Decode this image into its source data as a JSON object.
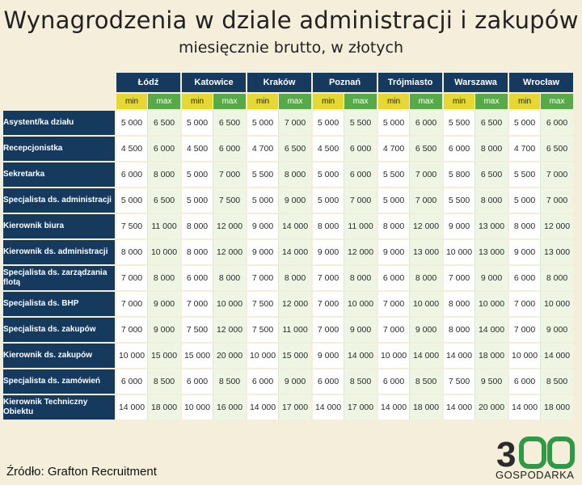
{
  "title": "Wynagrodzenia w dziale administracji i zakupów",
  "subtitle": "miesięcznie brutto, w złotych",
  "min_label": "min",
  "max_label": "max",
  "cities": [
    "Łódź",
    "Katowice",
    "Kraków",
    "Poznań",
    "Trójmiasto",
    "Warszawa",
    "Wrocław"
  ],
  "rows": [
    {
      "role": "Asystent/ka działu",
      "values": [
        "5 000",
        "6 500",
        "5 000",
        "6 500",
        "5 000",
        "7 000",
        "5 000",
        "5 500",
        "5 000",
        "6 000",
        "5 500",
        "6 500",
        "5 000",
        "6 000"
      ]
    },
    {
      "role": "Recepcjonistka",
      "values": [
        "4 500",
        "6 000",
        "4 500",
        "6 000",
        "4 700",
        "6 500",
        "4 500",
        "6 000",
        "4 700",
        "6 500",
        "6 000",
        "8 000",
        "4 700",
        "6 500"
      ]
    },
    {
      "role": "Sekretarka",
      "values": [
        "6 000",
        "8 000",
        "5 000",
        "7 000",
        "5 500",
        "8 000",
        "5 000",
        "6 000",
        "5 500",
        "7 000",
        "5 800",
        "6 500",
        "5 500",
        "7 000"
      ]
    },
    {
      "role": "Specjalista ds. administracji",
      "values": [
        "5 000",
        "6 500",
        "5 000",
        "7 500",
        "5 000",
        "9 000",
        "5 000",
        "7 000",
        "5 000",
        "7 000",
        "5 500",
        "8 000",
        "5 000",
        "7 000"
      ]
    },
    {
      "role": "Kierownik biura",
      "values": [
        "7 500",
        "11 000",
        "8 000",
        "12 000",
        "9 000",
        "14 000",
        "8 000",
        "11 000",
        "8 000",
        "12 000",
        "9 000",
        "13 000",
        "8 000",
        "12 000"
      ]
    },
    {
      "role": "Kierownik ds. administracji",
      "values": [
        "8 000",
        "10 000",
        "8 000",
        "12 000",
        "9 000",
        "14 000",
        "9 000",
        "12 000",
        "9 000",
        "13 000",
        "10 000",
        "13 000",
        "9 000",
        "13 000"
      ]
    },
    {
      "role": "Specjalista ds. zarządzania flotą",
      "values": [
        "7 000",
        "8 000",
        "6 000",
        "8 000",
        "7 000",
        "8 000",
        "7 000",
        "8 000",
        "6 000",
        "8 000",
        "7 000",
        "9 000",
        "6 000",
        "8 000"
      ]
    },
    {
      "role": "Specjalista ds. BHP",
      "values": [
        "7 000",
        "9 000",
        "7 000",
        "10 000",
        "7 500",
        "12 000",
        "7 000",
        "10 000",
        "7 000",
        "10 000",
        "8 000",
        "10 000",
        "7 000",
        "10 000"
      ]
    },
    {
      "role": "Specjalista ds. zakupów",
      "values": [
        "7 000",
        "9 000",
        "7 500",
        "12 000",
        "7 500",
        "11 000",
        "7 000",
        "9 000",
        "7 000",
        "9 000",
        "8 000",
        "14 000",
        "7 000",
        "9 000"
      ]
    },
    {
      "role": "Kierownik ds. zakupów",
      "values": [
        "10 000",
        "15 000",
        "15 000",
        "20 000",
        "10 000",
        "15 000",
        "9 000",
        "14 000",
        "10 000",
        "14 000",
        "14 000",
        "18 000",
        "10 000",
        "14 000"
      ]
    },
    {
      "role": "Specjalista ds. zamówień",
      "values": [
        "6 000",
        "8 500",
        "6 000",
        "8 500",
        "6 000",
        "9 000",
        "6 000",
        "8 500",
        "6 000",
        "8 500",
        "7 500",
        "9 500",
        "6 000",
        "8 500"
      ]
    },
    {
      "role": "Kierownik Techniczny Obiektu",
      "values": [
        "14 000",
        "18 000",
        "10 000",
        "16 000",
        "14 000",
        "17 000",
        "14 000",
        "17 000",
        "14 000",
        "18 000",
        "14 000",
        "20 000",
        "14 000",
        "18 000"
      ]
    }
  ],
  "source": "Źródło: Grafton Recruitment",
  "logo": {
    "number": "300",
    "word": "GOSPODARKA"
  },
  "colors": {
    "header": "#163a5e",
    "min": "#e6d833",
    "max": "#57a94a",
    "logo_green": "#2f9a46",
    "logo_dark": "#2b2b2b"
  }
}
